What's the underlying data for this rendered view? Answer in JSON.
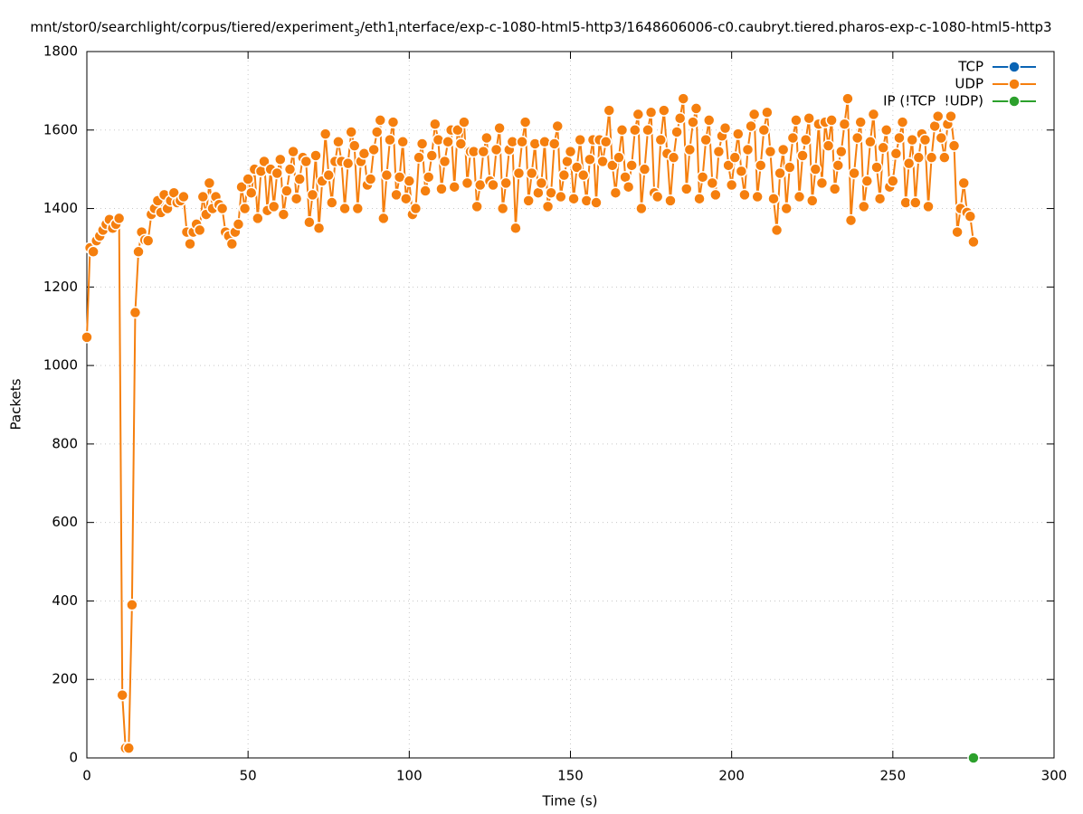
{
  "chart_data": {
    "type": "line",
    "title": [
      {
        "text": "mnt/stor0/searchlight/corpus/tiered/experiment"
      },
      {
        "text": "3",
        "sub": true
      },
      {
        "text": "/eth1"
      },
      {
        "text": "i",
        "sub": true
      },
      {
        "text": "nterface/exp-c-1080-html5-http3/1648606006-c0.caubryt.tiered.pharos-exp-c-1080-html5-http3"
      }
    ],
    "xlabel": "Time (s)",
    "ylabel": "Packets",
    "xlim": [
      0,
      300
    ],
    "xticks": [
      0,
      50,
      100,
      150,
      200,
      250,
      300
    ],
    "ylim": [
      0,
      1800
    ],
    "yticks": [
      0,
      200,
      400,
      600,
      800,
      1000,
      1200,
      1400,
      1600,
      1800
    ],
    "grid": true,
    "legend": "top-right",
    "series": [
      {
        "name": "TCP",
        "color": "#0a64b4",
        "x": [],
        "values": []
      },
      {
        "name": "UDP",
        "color": "#f57f0e",
        "x": [
          0,
          1,
          2,
          3,
          4,
          5,
          6,
          7,
          8,
          9,
          10,
          11,
          12,
          13,
          14,
          15,
          16,
          17,
          18,
          19,
          20,
          21,
          22,
          23,
          24,
          25,
          26,
          27,
          28,
          29,
          30,
          31,
          32,
          33,
          34,
          35,
          36,
          37,
          38,
          39,
          40,
          41,
          42,
          43,
          44,
          45,
          46,
          47,
          48,
          49,
          50,
          51,
          52,
          53,
          54,
          55,
          56,
          57,
          58,
          59,
          60,
          61,
          62,
          63,
          64,
          65,
          66,
          67,
          68,
          69,
          70,
          71,
          72,
          73,
          74,
          75,
          76,
          77,
          78,
          79,
          80,
          81,
          82,
          83,
          84,
          85,
          86,
          87,
          88,
          89,
          90,
          91,
          92,
          93,
          94,
          95,
          96,
          97,
          98,
          99,
          100,
          101,
          102,
          103,
          104,
          105,
          106,
          107,
          108,
          109,
          110,
          111,
          112,
          113,
          114,
          115,
          116,
          117,
          118,
          119,
          120,
          121,
          122,
          123,
          124,
          125,
          126,
          127,
          128,
          129,
          130,
          131,
          132,
          133,
          134,
          135,
          136,
          137,
          138,
          139,
          140,
          141,
          142,
          143,
          144,
          145,
          146,
          147,
          148,
          149,
          150,
          151,
          152,
          153,
          154,
          155,
          156,
          157,
          158,
          159,
          160,
          161,
          162,
          163,
          164,
          165,
          166,
          167,
          168,
          169,
          170,
          171,
          172,
          173,
          174,
          175,
          176,
          177,
          178,
          179,
          180,
          181,
          182,
          183,
          184,
          185,
          186,
          187,
          188,
          189,
          190,
          191,
          192,
          193,
          194,
          195,
          196,
          197,
          198,
          199,
          200,
          201,
          202,
          203,
          204,
          205,
          206,
          207,
          208,
          209,
          210,
          211,
          212,
          213,
          214,
          215,
          216,
          217,
          218,
          219,
          220,
          221,
          222,
          223,
          224,
          225,
          226,
          227,
          228,
          229,
          230,
          231,
          232,
          233,
          234,
          235,
          236,
          237,
          238,
          239,
          240,
          241,
          242,
          243,
          244,
          245,
          246,
          247,
          248,
          249,
          250,
          251,
          252,
          253,
          254,
          255,
          256,
          257,
          258,
          259,
          260,
          261,
          262,
          263,
          264,
          265,
          266,
          267,
          268,
          269,
          270,
          271,
          272,
          273,
          274,
          275
        ],
        "values": [
          1072,
          1300,
          1290,
          1318,
          1330,
          1345,
          1360,
          1372,
          1350,
          1360,
          1375,
          160,
          25,
          25,
          390,
          1135,
          1290,
          1340,
          1320,
          1318,
          1385,
          1400,
          1420,
          1390,
          1435,
          1400,
          1420,
          1440,
          1415,
          1420,
          1430,
          1340,
          1310,
          1340,
          1360,
          1345,
          1430,
          1385,
          1465,
          1400,
          1430,
          1410,
          1400,
          1340,
          1330,
          1310,
          1340,
          1360,
          1455,
          1400,
          1475,
          1440,
          1500,
          1375,
          1495,
          1520,
          1395,
          1500,
          1405,
          1490,
          1525,
          1385,
          1445,
          1500,
          1545,
          1425,
          1475,
          1530,
          1520,
          1365,
          1435,
          1535,
          1350,
          1470,
          1590,
          1485,
          1415,
          1520,
          1570,
          1520,
          1400,
          1515,
          1595,
          1560,
          1400,
          1520,
          1540,
          1460,
          1475,
          1550,
          1595,
          1625,
          1375,
          1485,
          1575,
          1620,
          1435,
          1480,
          1570,
          1425,
          1470,
          1385,
          1400,
          1530,
          1565,
          1445,
          1480,
          1535,
          1615,
          1575,
          1450,
          1520,
          1570,
          1600,
          1455,
          1600,
          1565,
          1620,
          1465,
          1545,
          1545,
          1405,
          1460,
          1545,
          1580,
          1470,
          1460,
          1550,
          1605,
          1400,
          1465,
          1550,
          1570,
          1350,
          1490,
          1570,
          1620,
          1420,
          1490,
          1565,
          1440,
          1465,
          1570,
          1405,
          1440,
          1565,
          1610,
          1430,
          1485,
          1520,
          1545,
          1425,
          1505,
          1575,
          1485,
          1420,
          1525,
          1575,
          1415,
          1575,
          1520,
          1570,
          1650,
          1510,
          1440,
          1530,
          1600,
          1480,
          1455,
          1510,
          1600,
          1640,
          1400,
          1500,
          1600,
          1645,
          1440,
          1430,
          1575,
          1650,
          1540,
          1420,
          1530,
          1595,
          1630,
          1680,
          1450,
          1550,
          1620,
          1655,
          1425,
          1480,
          1575,
          1625,
          1465,
          1435,
          1545,
          1585,
          1605,
          1510,
          1460,
          1530,
          1590,
          1495,
          1435,
          1550,
          1610,
          1640,
          1430,
          1510,
          1600,
          1645,
          1545,
          1425,
          1345,
          1490,
          1550,
          1400,
          1505,
          1580,
          1625,
          1430,
          1535,
          1575,
          1630,
          1420,
          1500,
          1615,
          1465,
          1620,
          1560,
          1625,
          1450,
          1510,
          1545,
          1615,
          1680,
          1370,
          1490,
          1580,
          1620,
          1405,
          1470,
          1570,
          1640,
          1505,
          1425,
          1555,
          1600,
          1455,
          1470,
          1540,
          1580,
          1620,
          1415,
          1515,
          1575,
          1415,
          1530,
          1590,
          1575,
          1405,
          1530,
          1610,
          1635,
          1580,
          1530,
          1615,
          1635,
          1560,
          1340,
          1400,
          1465,
          1390,
          1380,
          1315
        ]
      },
      {
        "name": "IP (!TCP  !UDP)",
        "color": "#2ca02c",
        "x": [
          275
        ],
        "values": [
          0
        ]
      }
    ]
  }
}
